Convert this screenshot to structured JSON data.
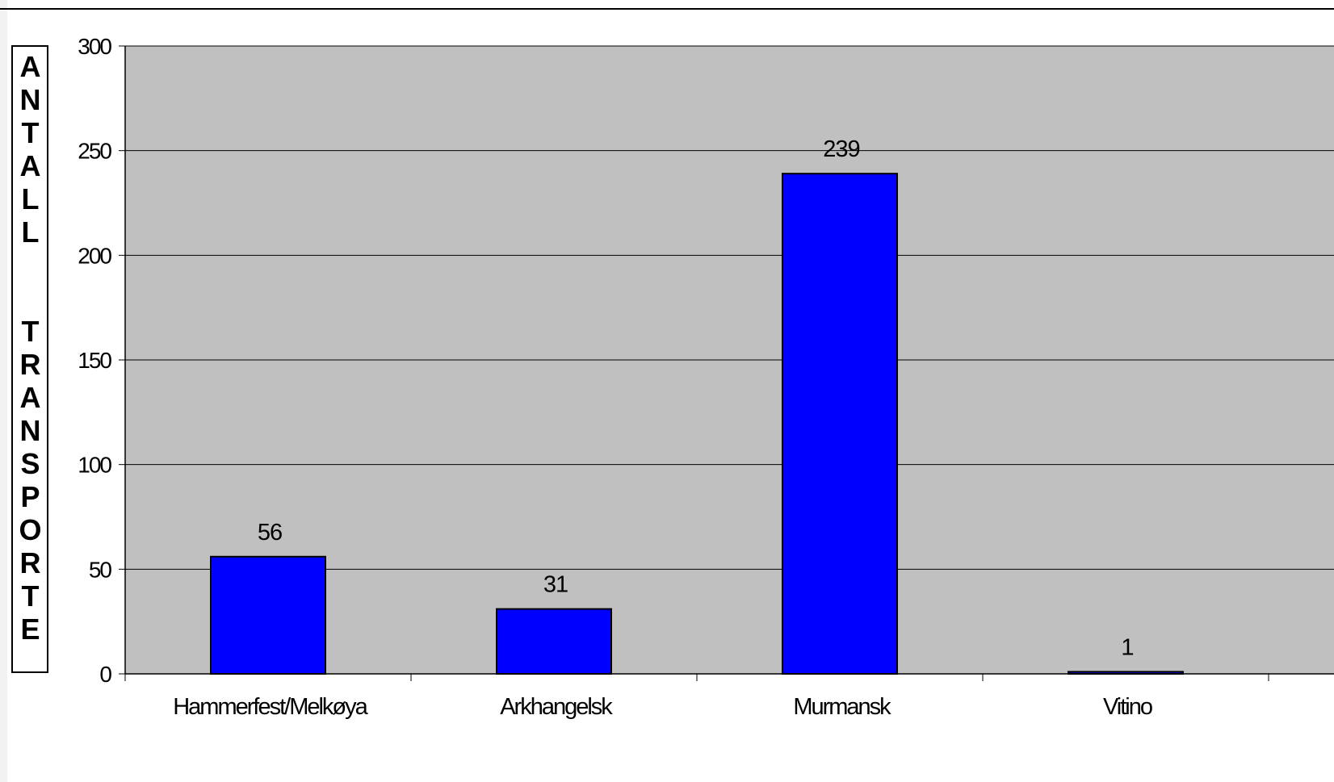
{
  "chart_data": {
    "type": "bar",
    "title": "",
    "xlabel": "",
    "ylabel": "ANTALL  TRANSPORTE",
    "categories": [
      "Hammerfest/Melkøya",
      "Arkhangelsk",
      "Murmansk",
      "Vitino"
    ],
    "values": [
      56,
      31,
      239,
      1
    ],
    "data_labels": [
      "56",
      "31",
      "239",
      "1"
    ],
    "ylim": [
      0,
      300
    ],
    "yticks": [
      0,
      50,
      100,
      150,
      200,
      250,
      300
    ],
    "grid": true,
    "legend": "none",
    "colors": {
      "bar": "#0000ff",
      "plot_background": "#c0c0c0",
      "gridline": "#000000"
    }
  }
}
